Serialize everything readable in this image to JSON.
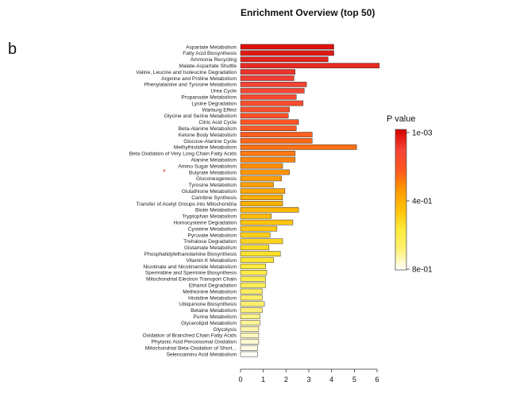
{
  "panel_label": "b",
  "chart_data": {
    "type": "bar",
    "orientation": "horizontal",
    "title": "Enrichment Overview (top 50)",
    "xlabel": "",
    "ylabel": "",
    "xlim": [
      0,
      6
    ],
    "x_ticks": [
      "0",
      "1",
      "2",
      "3",
      "4",
      "5",
      "6"
    ],
    "grid": false,
    "marker": {
      "symbol": "*",
      "category": "Butyrate Metabolism",
      "color": "#e53935"
    },
    "categories": [
      "Aspartate Metabolism",
      "Fatty Acid Biosynthesis",
      "Ammonia Recycling",
      "Malate-Aspartate Shuttle",
      "Valine, Leucine and Isoleucine Degradation",
      "Arginine and Proline Metabolism",
      "Phenylalanine and Tyrosine Metabolism",
      "Urea Cycle",
      "Propanoate Metabolism",
      "Lysine Degradation",
      "Warburg Effect",
      "Glycine and Serine Metabolism",
      "Citric Acid Cycle",
      "Beta-Alanine Metabolism",
      "Ketone Body Metabolism",
      "Glucose-Alanine Cycle",
      "Methylhistidine Metabolism",
      "Beta Oxidation of Very Long Chain Fatty Acids",
      "Alanine Metabolism",
      "Amino Sugar Metabolism",
      "Butyrate Metabolism",
      "Gluconeogenesis",
      "Tyrosine Metabolism",
      "Glutathione Metabolism",
      "Carnitine Synthesis",
      "Transfer of Acetyl Groups into Mitochondria",
      "Biotin Metabolism",
      "Tryptophan Metabolism",
      "Homocysteine Degradation",
      "Cysteine Metabolism",
      "Pyruvate Metabolism",
      "Trehalose Degradation",
      "Glutamate Metabolism",
      "Phosphatidylethanolamine Biosynthesis",
      "Vitamin K Metabolism",
      "Nicotinate and Nicotinamide Metabolism",
      "Spermidine and Spermine Biosynthesis",
      "Mitochondrial Electron Transport Chain",
      "Ethanol Degradation",
      "Methionine Metabolism",
      "Histidine Metabolism",
      "Ubiquinone Biosynthesis",
      "Betaine Metabolism",
      "Purine Metabolism",
      "Glycerolipid Metabolism",
      "Glycolysis",
      "Oxidation of Branched Chain Fatty Acids",
      "Phytanic Acid Peroxisomal Oxidation",
      "Mitochondrial Beta-Oxidation of Short...",
      "Selenoamino Acid Metabolism"
    ],
    "values": [
      4.1,
      4.1,
      3.85,
      6.1,
      2.4,
      2.35,
      2.9,
      2.8,
      2.45,
      2.75,
      2.15,
      2.1,
      2.55,
      2.45,
      3.15,
      3.15,
      5.1,
      2.4,
      2.4,
      1.85,
      2.15,
      1.8,
      1.45,
      1.95,
      1.85,
      1.85,
      2.55,
      1.35,
      2.3,
      1.6,
      1.3,
      1.85,
      1.25,
      1.75,
      1.45,
      1.1,
      1.15,
      1.1,
      1.1,
      0.95,
      0.95,
      1.05,
      0.95,
      0.85,
      0.85,
      0.8,
      0.8,
      0.8,
      0.75,
      0.75
    ],
    "legend": {
      "title": "P value",
      "position": "right",
      "tick_labels": [
        "1e-03",
        "4e-01",
        "8e-01"
      ],
      "gradient": [
        "#ffffff",
        "#fff176",
        "#ffeb3b",
        "#ffc107",
        "#ff9800",
        "#ff5722",
        "#f44336",
        "#d50000"
      ]
    }
  }
}
